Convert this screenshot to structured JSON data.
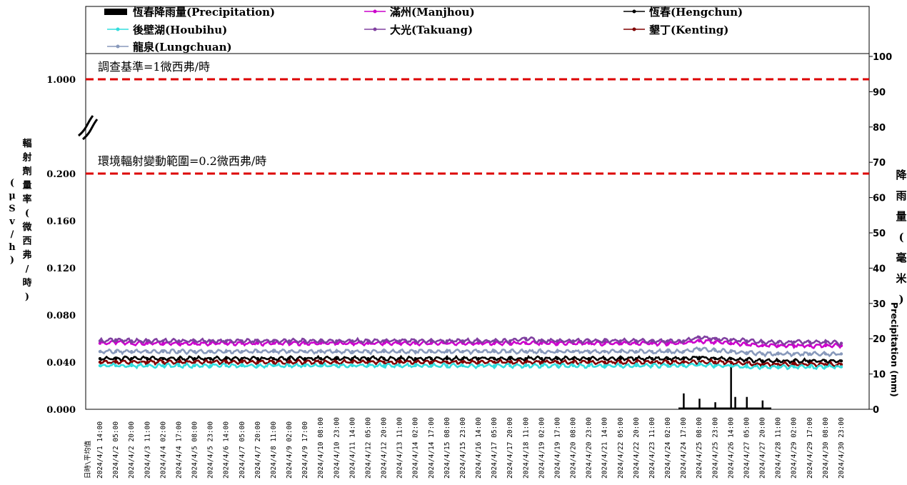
{
  "chart_data": {
    "type": "line",
    "legend": [
      {
        "name": "恆春降雨量(Precipitation)",
        "color": "#000000",
        "marker": "bar"
      },
      {
        "name": "滿州(Manjhou)",
        "color": "#cc00cc",
        "marker": "square"
      },
      {
        "name": "恆春(Hengchun)",
        "color": "#000000",
        "marker": "triangle"
      },
      {
        "name": "後壁湖(Houbihu)",
        "color": "#33dddd",
        "marker": "cross"
      },
      {
        "name": "大光(Takuang)",
        "color": "#8040a0",
        "marker": "x"
      },
      {
        "name": "墾丁(Kenting)",
        "color": "#800000",
        "marker": "circle"
      },
      {
        "name": "龍泉(Lungchuan)",
        "color": "#8899bb",
        "marker": "plus"
      }
    ],
    "legend_position": "top",
    "reference_lines": [
      {
        "label": "調查基準=1微西弗/時",
        "value": 1.0,
        "color": "#dd0000"
      },
      {
        "label": "環境輻射變動範圍=0.2微西弗/時",
        "value": 0.2,
        "color": "#dd0000"
      }
    ],
    "y_left": {
      "label_chars": [
        "輻",
        "射",
        "劑",
        "量",
        "率",
        "(",
        "微",
        "西",
        "弗",
        "/",
        "時",
        ")"
      ],
      "unit_chars": [
        "(",
        "μ",
        "S",
        "v",
        "/",
        "h",
        ")"
      ],
      "ticks": [
        "0.000",
        "0.040",
        "0.080",
        "0.120",
        "0.160",
        "0.200",
        "1.000"
      ],
      "broken_axis": true
    },
    "y_right": {
      "label_chars": [
        "降",
        "雨",
        "量",
        "(",
        "毫",
        "米",
        ")"
      ],
      "label_en": "Precipitation (mm)",
      "ylim": [
        0,
        100
      ],
      "ticks": [
        "0",
        "10",
        "20",
        "30",
        "40",
        "50",
        "60",
        "70",
        "80",
        "90",
        "100"
      ]
    },
    "x_first_label": "日時\\平均值",
    "x_labels": [
      "2024/4/1 14:00",
      "2024/4/2 05:00",
      "2024/4/2 20:00",
      "2024/4/3 11:00",
      "2024/4/4 02:00",
      "2024/4/4 17:00",
      "2024/4/5 08:00",
      "2024/4/5 23:00",
      "2024/4/6 14:00",
      "2024/4/7 05:00",
      "2024/4/7 20:00",
      "2024/4/8 11:00",
      "2024/4/9 02:00",
      "2024/4/9 17:00",
      "2024/4/10 08:00",
      "2024/4/10 23:00",
      "2024/4/11 14:00",
      "2024/4/12 05:00",
      "2024/4/12 20:00",
      "2024/4/13 11:00",
      "2024/4/14 02:00",
      "2024/4/14 17:00",
      "2024/4/15 08:00",
      "2024/4/15 23:00",
      "2024/4/16 14:00",
      "2024/4/17 05:00",
      "2024/4/17 20:00",
      "2024/4/18 11:00",
      "2024/4/19 02:00",
      "2024/4/19 17:00",
      "2024/4/20 08:00",
      "2024/4/20 23:00",
      "2024/4/21 14:00",
      "2024/4/22 05:00",
      "2024/4/22 20:00",
      "2024/4/23 11:00",
      "2024/4/24 02:00",
      "2024/4/24 17:00",
      "2024/4/25 08:00",
      "2024/4/25 23:00",
      "2024/4/26 14:00",
      "2024/4/27 05:00",
      "2024/4/27 20:00",
      "2024/4/28 11:00",
      "2024/4/29 02:00",
      "2024/4/29 17:00",
      "2024/4/30 08:00",
      "2024/4/30 23:00"
    ],
    "series": [
      {
        "name": "滿州(Manjhou)",
        "color": "#cc00cc",
        "values": [
          0.056,
          0.057,
          0.056,
          0.056,
          0.056,
          0.056,
          0.056,
          0.056,
          0.056,
          0.056,
          0.056,
          0.056,
          0.056,
          0.056,
          0.056,
          0.056,
          0.056,
          0.056,
          0.056,
          0.056,
          0.056,
          0.056,
          0.056,
          0.056,
          0.056,
          0.056,
          0.056,
          0.056,
          0.056,
          0.056,
          0.056,
          0.056,
          0.056,
          0.056,
          0.056,
          0.056,
          0.056,
          0.056,
          0.058,
          0.057,
          0.056,
          0.055,
          0.054,
          0.054,
          0.054,
          0.054,
          0.054,
          0.054
        ]
      },
      {
        "name": "大光(Takuang)",
        "color": "#8040a0",
        "values": [
          0.058,
          0.059,
          0.058,
          0.058,
          0.058,
          0.058,
          0.058,
          0.058,
          0.058,
          0.058,
          0.058,
          0.058,
          0.058,
          0.058,
          0.058,
          0.058,
          0.058,
          0.058,
          0.058,
          0.058,
          0.058,
          0.058,
          0.058,
          0.058,
          0.058,
          0.058,
          0.058,
          0.06,
          0.058,
          0.058,
          0.058,
          0.058,
          0.058,
          0.058,
          0.058,
          0.058,
          0.058,
          0.058,
          0.061,
          0.06,
          0.059,
          0.058,
          0.057,
          0.057,
          0.057,
          0.057,
          0.057,
          0.056
        ]
      },
      {
        "name": "龍泉(Lungchuan)",
        "color": "#8899bb",
        "values": [
          0.049,
          0.049,
          0.049,
          0.049,
          0.049,
          0.049,
          0.049,
          0.049,
          0.049,
          0.049,
          0.049,
          0.049,
          0.049,
          0.049,
          0.049,
          0.049,
          0.049,
          0.049,
          0.049,
          0.049,
          0.049,
          0.049,
          0.049,
          0.049,
          0.049,
          0.049,
          0.049,
          0.049,
          0.049,
          0.049,
          0.049,
          0.049,
          0.049,
          0.049,
          0.049,
          0.049,
          0.049,
          0.049,
          0.051,
          0.05,
          0.049,
          0.048,
          0.047,
          0.047,
          0.047,
          0.047,
          0.047,
          0.047
        ]
      },
      {
        "name": "恆春(Hengchun)",
        "color": "#000000",
        "values": [
          0.043,
          0.043,
          0.043,
          0.043,
          0.043,
          0.043,
          0.043,
          0.043,
          0.043,
          0.043,
          0.043,
          0.043,
          0.043,
          0.043,
          0.043,
          0.043,
          0.043,
          0.043,
          0.043,
          0.043,
          0.043,
          0.043,
          0.043,
          0.043,
          0.043,
          0.043,
          0.043,
          0.043,
          0.043,
          0.043,
          0.043,
          0.043,
          0.043,
          0.043,
          0.043,
          0.043,
          0.043,
          0.043,
          0.044,
          0.043,
          0.043,
          0.042,
          0.041,
          0.041,
          0.041,
          0.041,
          0.041,
          0.041
        ]
      },
      {
        "name": "墾丁(Kenting)",
        "color": "#800000",
        "values": [
          0.04,
          0.04,
          0.04,
          0.04,
          0.04,
          0.04,
          0.04,
          0.04,
          0.04,
          0.04,
          0.04,
          0.04,
          0.04,
          0.04,
          0.04,
          0.04,
          0.04,
          0.04,
          0.04,
          0.04,
          0.04,
          0.04,
          0.04,
          0.04,
          0.04,
          0.04,
          0.04,
          0.04,
          0.04,
          0.04,
          0.04,
          0.04,
          0.04,
          0.04,
          0.04,
          0.04,
          0.04,
          0.04,
          0.04,
          0.04,
          0.04,
          0.039,
          0.038,
          0.038,
          0.038,
          0.038,
          0.038,
          0.038
        ]
      },
      {
        "name": "後壁湖(Houbihu)",
        "color": "#33dddd",
        "values": [
          0.037,
          0.037,
          0.037,
          0.037,
          0.037,
          0.037,
          0.037,
          0.037,
          0.037,
          0.037,
          0.037,
          0.037,
          0.037,
          0.037,
          0.037,
          0.037,
          0.037,
          0.037,
          0.037,
          0.037,
          0.037,
          0.037,
          0.037,
          0.037,
          0.037,
          0.037,
          0.037,
          0.037,
          0.037,
          0.037,
          0.037,
          0.037,
          0.037,
          0.037,
          0.037,
          0.037,
          0.037,
          0.037,
          0.038,
          0.037,
          0.037,
          0.036,
          0.036,
          0.036,
          0.036,
          0.036,
          0.036,
          0.036
        ]
      }
    ],
    "precipitation_mm": [
      {
        "x": "2024/4/24 17:00",
        "value": 4.5
      },
      {
        "x": "2024/4/25 08:00",
        "value": 3.0
      },
      {
        "x": "2024/4/25 23:00",
        "value": 2.0
      },
      {
        "x": "2024/4/26 14:00",
        "value": 13.0
      },
      {
        "x": "2024/4/26 18:00",
        "value": 3.5
      },
      {
        "x": "2024/4/27 05:00",
        "value": 3.5
      },
      {
        "x": "2024/4/27 20:00",
        "value": 2.5
      }
    ]
  }
}
